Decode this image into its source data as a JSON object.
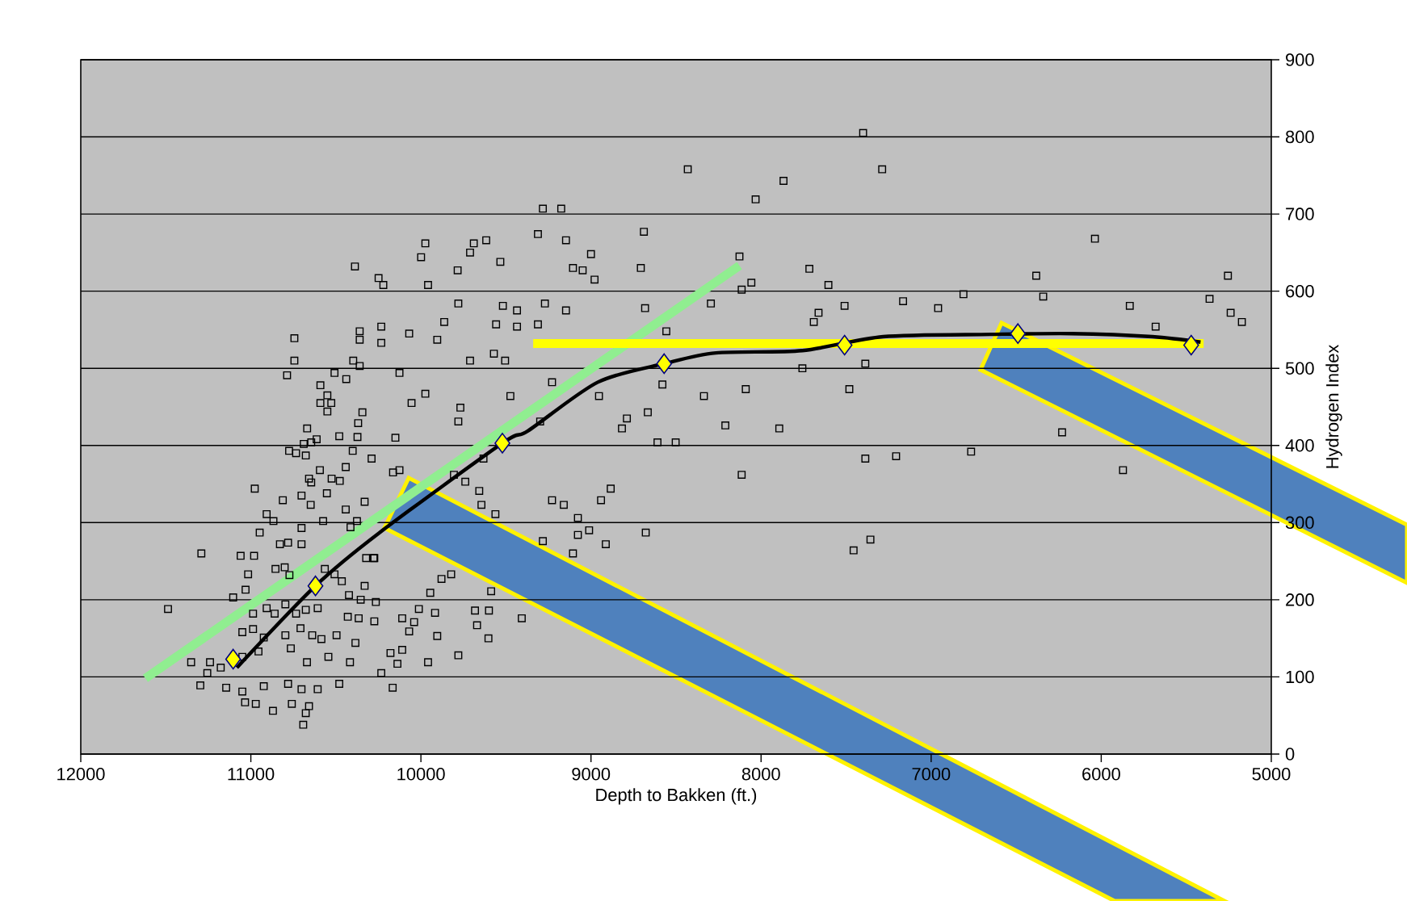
{
  "chart_data": {
    "type": "scatter",
    "xlabel": "Depth to Bakken (ft.)",
    "ylabel": "Hydrogen Index",
    "xlim": [
      12000,
      5000
    ],
    "ylim": [
      0,
      900
    ],
    "xticks": [
      12000,
      11000,
      10000,
      9000,
      8000,
      7000,
      6000,
      5000
    ],
    "yticks": [
      0,
      100,
      200,
      300,
      400,
      500,
      600,
      700,
      800,
      900
    ],
    "grid": "y",
    "series": [
      {
        "type": "scatter",
        "color": "#000000",
        "marker": "square",
        "x": [
          7400,
          7868,
          7288,
          6037,
          7716,
          7604,
          6382,
          5255,
          7509,
          7662,
          7690,
          7165,
          6959,
          6810,
          6341,
          5832,
          5680,
          5363,
          5239,
          5173,
          7757,
          7387,
          7481,
          7893,
          6230,
          7387,
          7206,
          6765,
          5872,
          7357,
          7456,
          8431,
          8032,
          9283,
          9175,
          9974,
          9999,
          9689,
          9616,
          9711,
          9312,
          9147,
          8689,
          9000,
          9533,
          9784,
          9106,
          9049,
          8979,
          8707,
          8127,
          8057,
          8114,
          10249,
          10221,
          9958,
          9780,
          9518,
          9435,
          9271,
          9147,
          8682,
          8295,
          9863,
          9558,
          9435,
          9312,
          10233,
          10233,
          10069,
          9904,
          9571,
          9505,
          9711,
          8557,
          10126,
          9229,
          8953,
          8580,
          8336,
          8090,
          9974,
          10055,
          9768,
          9780,
          9474,
          9299,
          8789,
          8818,
          8666,
          8210,
          10150,
          8609,
          8502,
          8114,
          10290,
          10164,
          10126,
          9632,
          9806,
          9739,
          9657,
          9644,
          9562,
          9229,
          9160,
          8941,
          8884,
          9077,
          9011,
          9077,
          8678,
          8913,
          9283,
          9106,
          10274,
          9822,
          9879,
          9945,
          9587,
          10265,
          10274,
          10110,
          10040,
          10012,
          9917,
          10069,
          9682,
          9600,
          9670,
          9407,
          9904,
          9603,
          10179,
          10110,
          10138,
          9958,
          9780,
          10233,
          10166,
          10388,
          10744,
          10360,
          10360,
          10744,
          10787,
          10398,
          10360,
          10508,
          10439,
          10591,
          10550,
          10591,
          10527,
          10550,
          10344,
          10369,
          10669,
          10613,
          10480,
          10373,
          10775,
          10734,
          10689,
          10645,
          10677,
          10401,
          10594,
          10442,
          10977,
          10658,
          10645,
          10525,
          10477,
          10553,
          10812,
          10331,
          10702,
          10648,
          10442,
          10907,
          10867,
          10575,
          10702,
          10948,
          10414,
          10376,
          10781,
          10829,
          10702,
          11291,
          11060,
          10981,
          10322,
          10278,
          11016,
          10855,
          10801,
          10773,
          10508,
          10565,
          10465,
          10331,
          11104,
          11031,
          10987,
          10907,
          10860,
          10797,
          10734,
          10677,
          10607,
          10423,
          10354,
          11487,
          10430,
          10366,
          11050,
          10987,
          10924,
          10797,
          10708,
          10639,
          10585,
          10496,
          10385,
          11351,
          11240,
          11256,
          11177,
          11050,
          10955,
          10765,
          10670,
          10544,
          10417,
          11297,
          11145,
          11050,
          10924,
          10781,
          10702,
          10607,
          10480,
          11034,
          10971,
          10870,
          10759,
          10658,
          10677,
          10692
        ],
        "values": [
          805,
          743,
          758,
          668,
          629,
          608,
          620,
          620,
          581,
          572,
          560,
          587,
          578,
          596,
          593,
          581,
          554,
          590,
          572,
          560,
          500,
          506,
          473,
          422,
          417,
          383,
          386,
          392,
          368,
          278,
          264,
          758,
          719,
          707,
          707,
          662,
          644,
          662,
          666,
          650,
          674,
          666,
          677,
          648,
          638,
          627,
          630,
          627,
          615,
          630,
          645,
          611,
          602,
          617,
          608,
          608,
          584,
          581,
          575,
          584,
          575,
          578,
          584,
          560,
          557,
          554,
          557,
          554,
          533,
          545,
          537,
          519,
          510,
          510,
          548,
          494,
          482,
          464,
          479,
          464,
          473,
          467,
          455,
          449,
          431,
          464,
          431,
          435,
          422,
          443,
          426,
          410,
          404,
          404,
          362,
          383,
          365,
          368,
          383,
          362,
          353,
          341,
          323,
          311,
          329,
          323,
          329,
          344,
          306,
          290,
          284,
          287,
          272,
          276,
          260,
          254,
          233,
          227,
          209,
          211,
          197,
          172,
          176,
          171,
          188,
          183,
          159,
          186,
          186,
          167,
          176,
          153,
          150,
          131,
          135,
          117,
          119,
          128,
          105,
          86,
          632,
          539,
          548,
          537,
          510,
          491,
          510,
          503,
          494,
          486,
          478,
          465,
          455,
          455,
          444,
          443,
          429,
          422,
          408,
          412,
          411,
          393,
          390,
          402,
          404,
          387,
          393,
          368,
          372,
          344,
          357,
          352,
          357,
          354,
          338,
          329,
          327,
          335,
          323,
          317,
          311,
          302,
          302,
          293,
          287,
          294,
          302,
          274,
          272,
          272,
          260,
          257,
          257,
          254,
          254,
          233,
          240,
          242,
          232,
          233,
          240,
          224,
          218,
          203,
          213,
          182,
          189,
          182,
          194,
          182,
          187,
          189,
          206,
          200,
          188,
          178,
          176,
          158,
          162,
          151,
          154,
          163,
          154,
          149,
          154,
          144,
          119,
          119,
          105,
          112,
          126,
          133,
          137,
          119,
          126,
          119,
          89,
          86,
          81,
          88,
          91,
          84,
          84,
          91,
          67,
          65,
          56,
          65,
          62,
          53,
          38
        ]
      },
      {
        "type": "line",
        "color": "#90ee90",
        "marker": "none",
        "x": [
          11620,
          8127
        ],
        "values": [
          98,
          633
        ]
      },
      {
        "type": "line",
        "color": "#ffff00",
        "marker": "none",
        "x": [
          9340,
          5398
        ],
        "values": [
          532,
          532
        ]
      },
      {
        "type": "line",
        "color": "#000000",
        "marker": "none",
        "x": [
          11082,
          10620,
          10243,
          9521,
          9370,
          8960,
          8570,
          8265,
          7757,
          7282,
          6649,
          6174,
          5699,
          5416
        ],
        "values": [
          112,
          218,
          287,
          403,
          419,
          482,
          506,
          520,
          523,
          541,
          544,
          545,
          541,
          534
        ]
      },
      {
        "type": "scatter",
        "color": "#ffff00",
        "marker": "diamond",
        "x": [
          11104,
          10620,
          9521,
          8570,
          7509,
          6490,
          5471
        ],
        "values": [
          123,
          218,
          403,
          506,
          530,
          545,
          530
        ]
      }
    ]
  }
}
